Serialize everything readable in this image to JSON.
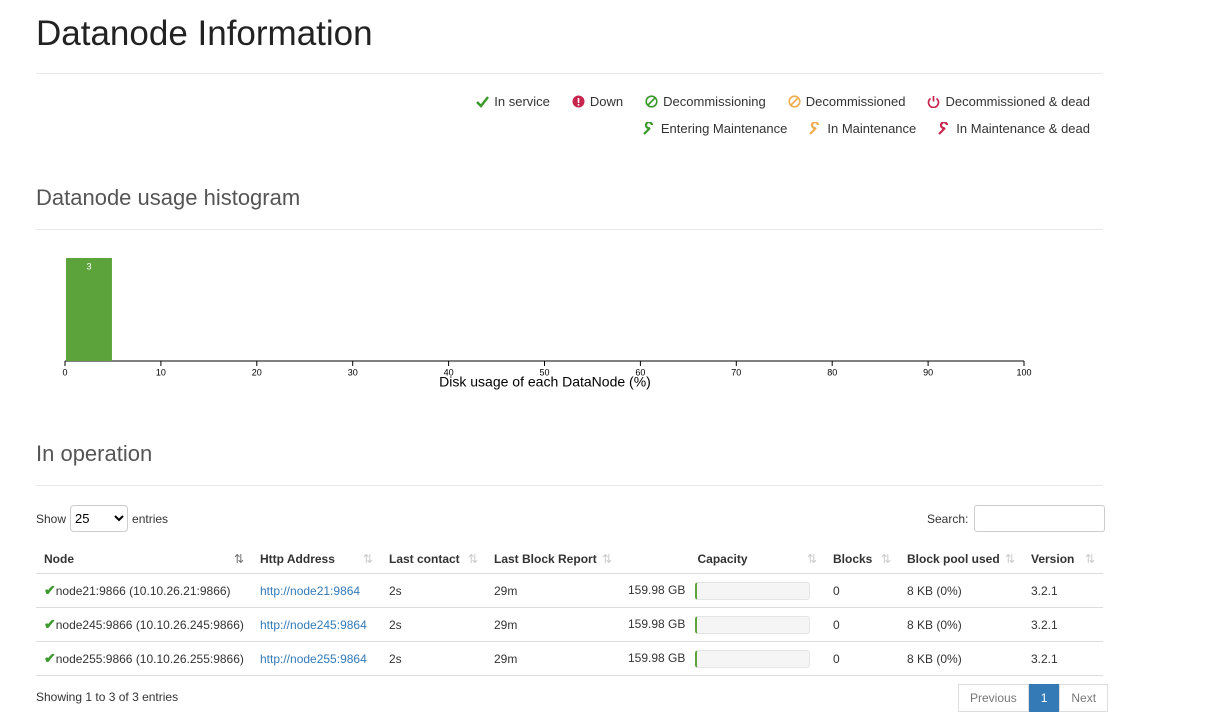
{
  "header": {
    "title": "Datanode Information"
  },
  "legend": [
    "In service",
    "Down",
    "Decommissioning",
    "Decommissioned",
    "Decommissioned & dead",
    "Entering Maintenance",
    "In Maintenance",
    "In Maintenance & dead"
  ],
  "chart_data": {
    "type": "histogram",
    "title": "Datanode usage histogram",
    "x_label": "Disk usage of each DataNode (%)",
    "bins": [
      0,
      5
    ],
    "values": [
      3
    ],
    "color": "#5ca33c",
    "xlim": [
      0,
      100
    ],
    "xticks": [
      0,
      10,
      20,
      30,
      40,
      50,
      60,
      70,
      80,
      90,
      100
    ]
  },
  "table": {
    "title": "In operation",
    "show_label": "Show",
    "page_length": "25",
    "entries_label": "entries",
    "search_label": "Search:",
    "columns": [
      "Node",
      "Http Address",
      "Last contact",
      "Last Block Report",
      "Capacity",
      "Blocks",
      "Block pool used",
      "Version"
    ],
    "rows": [
      [
        "node21:9866 (10.10.26.21:9866)",
        "http://node21:9864",
        "2s",
        "29m",
        "159.98 GB",
        "0",
        "8 KB (0%)",
        "3.2.1"
      ],
      [
        "node245:9866 (10.10.26.245:9866)",
        "http://node245:9864",
        "2s",
        "29m",
        "159.98 GB",
        "0",
        "8 KB (0%)",
        "3.2.1"
      ],
      [
        "node255:9866 (10.10.26.255:9866)",
        "http://node255:9864",
        "2s",
        "29m",
        "159.98 GB",
        "0",
        "8 KB (0%)",
        "3.2.1"
      ]
    ],
    "info": "Showing 1 to 3 of 3 entries",
    "pagination": [
      "Previous",
      "1",
      "Next"
    ]
  }
}
